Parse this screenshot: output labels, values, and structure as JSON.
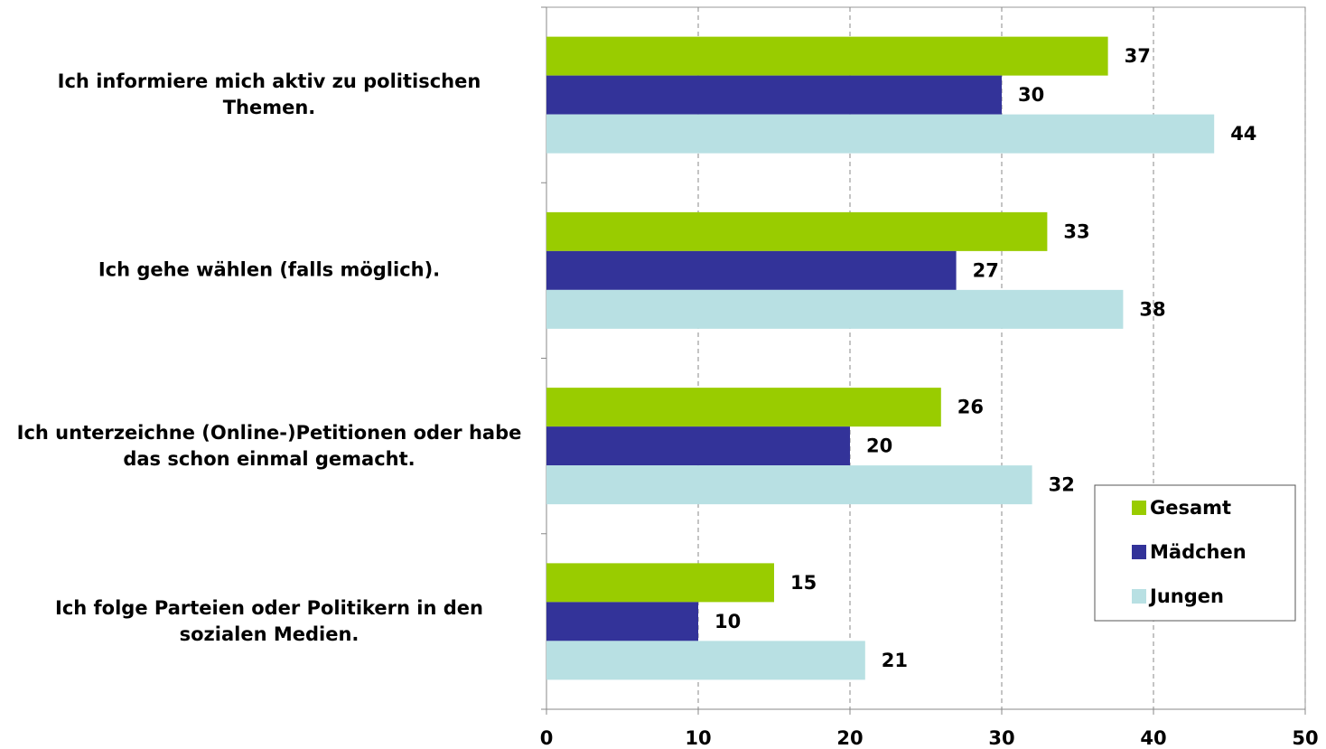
{
  "chart_data": {
    "type": "barh",
    "categories": [
      "Ich informiere mich aktiv zu politischen Themen.",
      "Ich gehe wählen (falls möglich).",
      "Ich unterzeichne (Online-)Petitionen oder habe das schon einmal gemacht.",
      "Ich folge Parteien oder Politikern in den sozialen Medien."
    ],
    "series": [
      {
        "name": "Gesamt",
        "color": "#99cc00",
        "values": [
          37,
          33,
          26,
          15
        ]
      },
      {
        "name": "Mädchen",
        "color": "#333399",
        "values": [
          30,
          27,
          20,
          10
        ]
      },
      {
        "name": "Jungen",
        "color": "#b8e0e3",
        "values": [
          44,
          38,
          32,
          21
        ]
      }
    ],
    "xlim": [
      0,
      50
    ],
    "xticks": [
      0,
      10,
      20,
      30,
      40,
      50
    ],
    "grid": true,
    "legend": "lower right"
  }
}
